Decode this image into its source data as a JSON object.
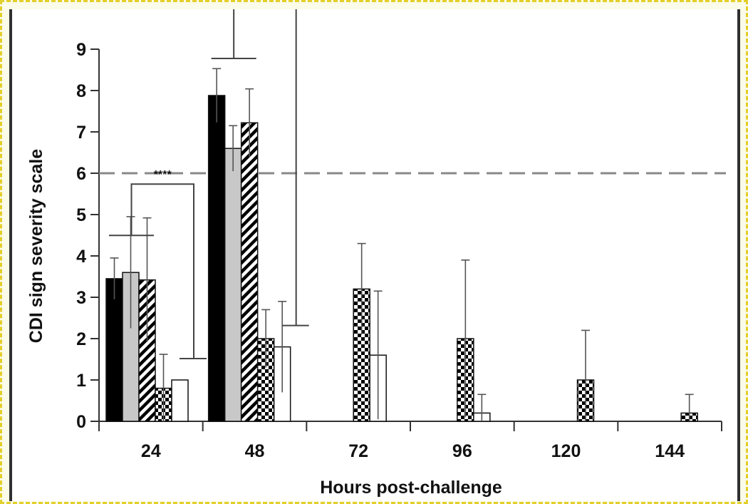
{
  "chart_data": {
    "type": "bar",
    "xlabel": "Hours post-challenge",
    "ylabel": "CDI sign severity scale",
    "categories": [
      "24",
      "48",
      "72",
      "96",
      "120",
      "144"
    ],
    "ylim": [
      0,
      9
    ],
    "yticks": [
      "0",
      "1",
      "2",
      "3",
      "4",
      "5",
      "6",
      "7",
      "8",
      "9"
    ],
    "threshold": 6,
    "grid": false,
    "series": [
      {
        "pattern": "solid-black",
        "color": "#000000",
        "values": [
          3.45,
          7.88,
          null,
          null,
          null,
          null
        ],
        "errors": [
          0.5,
          0.65,
          null,
          null,
          null,
          null
        ]
      },
      {
        "pattern": "solid-gray",
        "color": "#c8c8c8",
        "values": [
          3.6,
          6.6,
          null,
          null,
          null,
          null
        ],
        "errors": [
          1.35,
          0.55,
          null,
          null,
          null,
          null
        ]
      },
      {
        "pattern": "diagonal-hatch",
        "color": "#000000",
        "values": [
          3.42,
          7.22,
          null,
          null,
          null,
          null
        ],
        "errors": [
          1.5,
          0.82,
          null,
          null,
          null,
          null
        ]
      },
      {
        "pattern": "checker",
        "color": "#000000",
        "values": [
          0.8,
          2.0,
          3.2,
          2.0,
          1.0,
          0.2
        ],
        "errors": [
          0.82,
          0.7,
          1.1,
          1.9,
          1.2,
          0.45
        ]
      },
      {
        "pattern": "white",
        "color": "#ffffff",
        "values": [
          1.0,
          1.8,
          1.6,
          0.2,
          null,
          null
        ],
        "errors": [
          null,
          1.1,
          1.55,
          0.45,
          null,
          null
        ]
      }
    ],
    "significance": [
      {
        "category": "24",
        "label": "****"
      },
      {
        "category": "48",
        "label": "****"
      }
    ]
  }
}
